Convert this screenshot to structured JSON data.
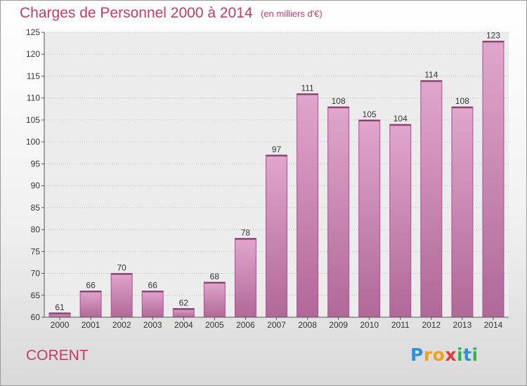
{
  "header": {
    "title": "Charges de Personnel 2000 à 2014",
    "subtitle": "(en milliers d'€)"
  },
  "footer": {
    "commune": "CORENT",
    "logo_letters": [
      "P",
      "r",
      "o",
      "x",
      "i",
      "t",
      "i"
    ]
  },
  "colors": {
    "title": "#c43a6a",
    "bar_top": "#e0a6cc",
    "bar_bottom": "#b06898",
    "logo": [
      "#2f8fd8",
      "#f0a020",
      "#f0a020",
      "#e03a3a",
      "#36b24a",
      "#2f8fd8",
      "#36b24a"
    ]
  },
  "chart_data": {
    "type": "bar",
    "categories": [
      "2000",
      "2001",
      "2002",
      "2003",
      "2004",
      "2005",
      "2006",
      "2007",
      "2008",
      "2009",
      "2010",
      "2011",
      "2012",
      "2013",
      "2014"
    ],
    "values": [
      61,
      66,
      70,
      66,
      62,
      68,
      78,
      97,
      111,
      108,
      105,
      104,
      114,
      108,
      123
    ],
    "ylim": [
      60,
      125
    ],
    "yticks": [
      60,
      65,
      70,
      75,
      80,
      85,
      90,
      95,
      100,
      105,
      110,
      115,
      120,
      125
    ],
    "grid": "horizontal",
    "legend": "none",
    "data_labels": true
  }
}
